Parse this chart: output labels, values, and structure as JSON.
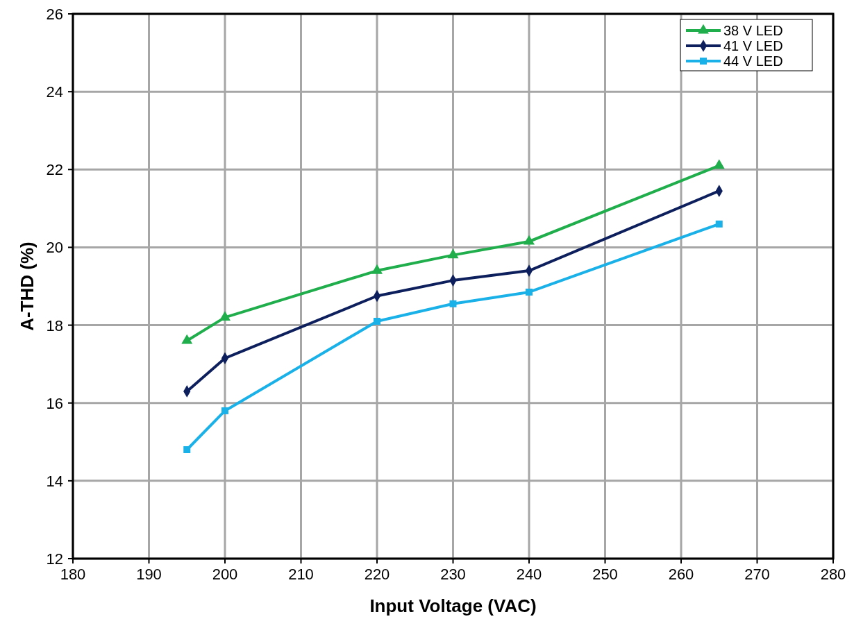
{
  "chart_data": {
    "type": "line",
    "xlabel": "Input Voltage (VAC)",
    "ylabel": "A-THD (%)",
    "x": [
      195,
      200,
      220,
      230,
      240,
      265
    ],
    "series": [
      {
        "name": "38 V LED",
        "color": "#1fae4b",
        "marker": "triangle",
        "values": [
          17.6,
          18.2,
          19.4,
          19.8,
          20.15,
          22.1
        ]
      },
      {
        "name": "41 V LED",
        "color": "#0d1f5c",
        "marker": "diamond",
        "values": [
          16.3,
          17.15,
          18.75,
          19.15,
          19.4,
          21.45
        ]
      },
      {
        "name": "44 V LED",
        "color": "#1ab0e8",
        "marker": "square",
        "values": [
          14.8,
          15.8,
          18.1,
          18.55,
          18.85,
          20.6
        ]
      }
    ],
    "xlim": [
      180,
      280
    ],
    "xticks": [
      180,
      190,
      200,
      210,
      220,
      230,
      240,
      250,
      260,
      270,
      280
    ],
    "ylim": [
      12,
      26
    ],
    "yticks": [
      12,
      14,
      16,
      18,
      20,
      22,
      24,
      26
    ],
    "grid": true,
    "legend": "top right",
    "line_style": "solid"
  }
}
